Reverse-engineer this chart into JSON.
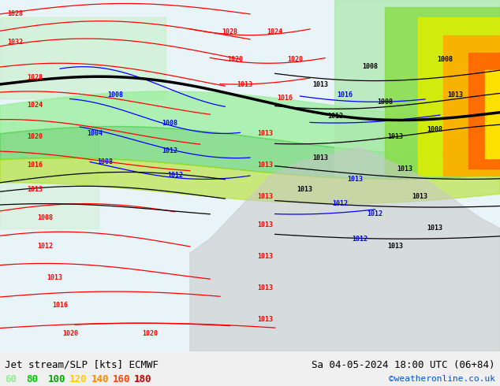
{
  "title_left": "Jet stream/SLP [kts] ECMWF",
  "title_right": "Sa 04-05-2024 18:00 UTC (06+84)",
  "credit": "©weatheronline.co.uk",
  "legend_values": [
    60,
    80,
    100,
    120,
    140,
    160,
    180
  ],
  "legend_colors": [
    "#90ee90",
    "#00cc00",
    "#00aa00",
    "#ffcc00",
    "#ff8800",
    "#ff4400",
    "#cc0000"
  ],
  "bg_color": "#f0f0f0",
  "map_bg": "#e8f4f8",
  "fig_width": 6.34,
  "fig_height": 4.9,
  "dpi": 100,
  "bottom_bar_color": "#d8d8d8",
  "title_fontsize": 9,
  "legend_fontsize": 9,
  "credit_fontsize": 8,
  "credit_color": "#0055cc"
}
